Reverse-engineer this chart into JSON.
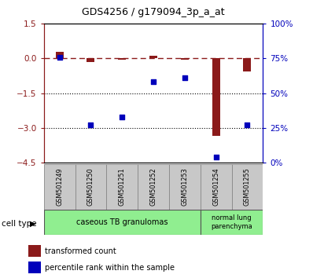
{
  "title": "GDS4256 / g179094_3p_a_at",
  "samples": [
    "GSM501249",
    "GSM501250",
    "GSM501251",
    "GSM501252",
    "GSM501253",
    "GSM501254",
    "GSM501255"
  ],
  "red_values": [
    0.28,
    -0.15,
    -0.04,
    0.1,
    -0.04,
    -3.35,
    -0.55
  ],
  "blue_values": [
    76,
    27,
    33,
    58,
    61,
    4,
    27
  ],
  "ylim_left": [
    -4.5,
    1.5
  ],
  "ylim_right": [
    0,
    100
  ],
  "yticks_left": [
    1.5,
    0,
    -1.5,
    -3.0,
    -4.5
  ],
  "yticks_right": [
    0,
    25,
    50,
    75,
    100
  ],
  "hlines": [
    -1.5,
    -3.0
  ],
  "left_color": "#8B1A1A",
  "right_color": "#0000BB",
  "group1_label": "caseous TB granulomas",
  "group1_count": 5,
  "group2_label": "normal lung\nparenchyma",
  "group2_count": 2,
  "legend_red": "transformed count",
  "legend_blue": "percentile rank within the sample",
  "cell_type_label": "cell type",
  "group_color": "#90EE90",
  "sample_box_color": "#C8C8C8",
  "bar_width": 0.25,
  "right_ytick_labels": [
    "0%",
    "25%",
    "50%",
    "75%",
    "100%"
  ],
  "title_fontsize": 9
}
